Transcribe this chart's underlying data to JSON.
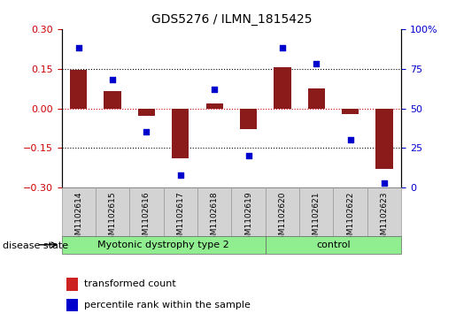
{
  "title": "GDS5276 / ILMN_1815425",
  "samples": [
    "GSM1102614",
    "GSM1102615",
    "GSM1102616",
    "GSM1102617",
    "GSM1102618",
    "GSM1102619",
    "GSM1102620",
    "GSM1102621",
    "GSM1102622",
    "GSM1102623"
  ],
  "red_values": [
    0.145,
    0.065,
    -0.03,
    -0.19,
    0.02,
    -0.08,
    0.155,
    0.075,
    -0.02,
    -0.23
  ],
  "blue_values": [
    88,
    68,
    35,
    8,
    62,
    20,
    88,
    78,
    30,
    3
  ],
  "disease_groups": [
    {
      "label": "Myotonic dystrophy type 2",
      "start": 0,
      "end": 6,
      "color": "#90EE90"
    },
    {
      "label": "control",
      "start": 6,
      "end": 10,
      "color": "#90EE90"
    }
  ],
  "ylim_left": [
    -0.3,
    0.3
  ],
  "ylim_right": [
    0,
    100
  ],
  "yticks_left": [
    -0.3,
    -0.15,
    0,
    0.15,
    0.3
  ],
  "yticks_right": [
    0,
    25,
    50,
    75,
    100
  ],
  "ytick_labels_right": [
    "0",
    "25",
    "50",
    "75",
    "100%"
  ],
  "hlines": [
    0.15,
    0,
    -0.15
  ],
  "hline_colors": [
    "black",
    "#CC0000",
    "black"
  ],
  "hline_styles": [
    "dotted",
    "dotted",
    "dotted"
  ],
  "bar_color": "#8B1A1A",
  "dot_color": "#0000CC",
  "bar_color_legend": "#CC2222",
  "dot_color_legend": "#0000CC",
  "legend_items": [
    {
      "color": "#CC2222",
      "label": "transformed count"
    },
    {
      "color": "#0000CC",
      "label": "percentile rank within the sample"
    }
  ],
  "disease_label": "disease state",
  "bar_width": 0.5,
  "dot_size": 25,
  "xlabel_fontsize": 7,
  "title_fontsize": 10,
  "tick_gray_bg": "#D3D3D3",
  "tick_gray_edge": "#999999",
  "left_ytick_color": "#CC0000",
  "right_ytick_color": "#0000CC",
  "xlim": [
    -0.5,
    9.5
  ]
}
